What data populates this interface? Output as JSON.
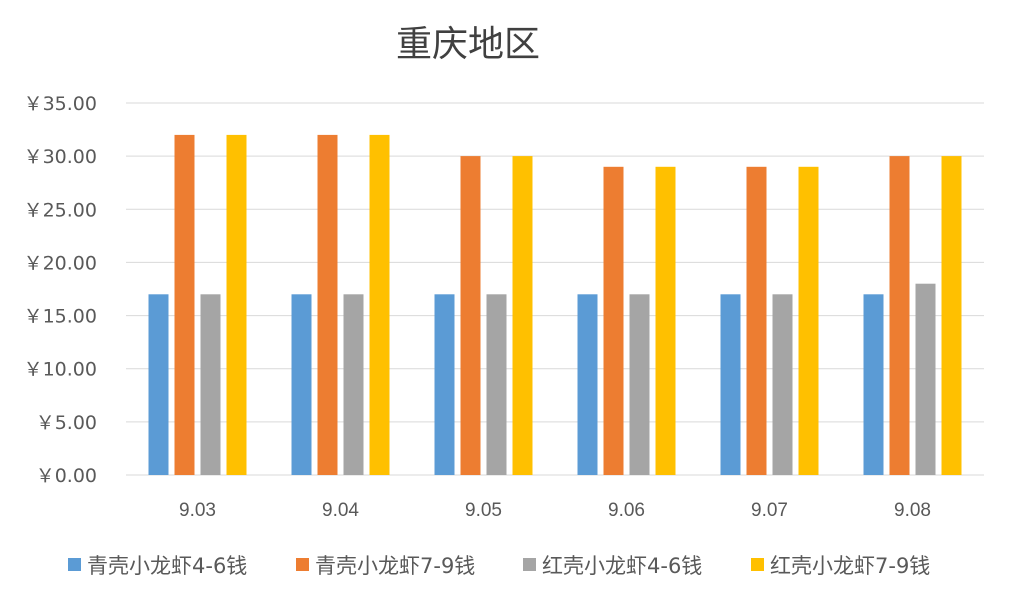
{
  "chart_data": {
    "type": "bar",
    "title": "重庆地区",
    "xlabel": "",
    "ylabel": "",
    "categories": [
      "9.03",
      "9.04",
      "9.05",
      "9.06",
      "9.07",
      "9.08"
    ],
    "series": [
      {
        "name": "青壳小龙虾4-6钱",
        "color": "#5B9BD5",
        "values": [
          17,
          17,
          17,
          17,
          17,
          17
        ]
      },
      {
        "name": "青壳小龙虾7-9钱",
        "color": "#ED7D31",
        "values": [
          32,
          32,
          30,
          29,
          29,
          30
        ]
      },
      {
        "name": "红壳小龙虾4-6钱",
        "color": "#A5A5A5",
        "values": [
          17,
          17,
          17,
          17,
          17,
          18
        ]
      },
      {
        "name": "红壳小龙虾7-9钱",
        "color": "#FFC000",
        "values": [
          32,
          32,
          30,
          29,
          29,
          30
        ]
      }
    ],
    "ylim": [
      0,
      35
    ],
    "yticks": [
      0,
      5,
      10,
      15,
      20,
      25,
      30,
      35
    ],
    "ytick_labels": [
      "￥0.00",
      "￥5.00",
      "￥10.00",
      "￥15.00",
      "￥20.00",
      "￥25.00",
      "￥30.00",
      "￥35.00"
    ],
    "grid": true,
    "legend_position": "bottom"
  }
}
